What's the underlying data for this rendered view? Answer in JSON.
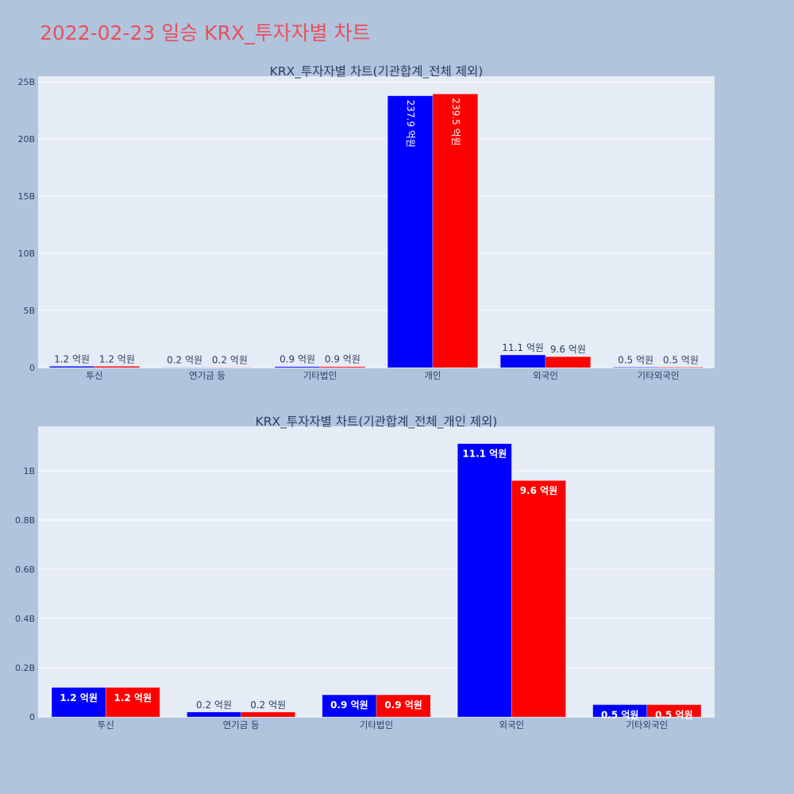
{
  "page": {
    "title": "2022-02-23 일승 KRX_투자자별 차트"
  },
  "colors": {
    "series1": "#0000ff",
    "series2": "#ff0000",
    "plot_bg": "#e5ecf6",
    "page_bg": "#b0c4de",
    "title": "#e8505b"
  },
  "chart_data": [
    {
      "type": "bar",
      "title": "KRX_투자자별 차트(기관합계_전체 제외)",
      "categories": [
        "투신",
        "연기금 등",
        "기타법인",
        "개인",
        "외국인",
        "기타외국인"
      ],
      "series": [
        {
          "values": [
            120000000,
            20000000,
            90000000,
            23790000000,
            1110000000,
            50000000
          ],
          "labels": [
            "1.2 억원",
            "0.2 억원",
            "0.9 억원",
            "237.9 억원",
            "11.1 억원",
            "0.5 억원"
          ]
        },
        {
          "values": [
            120000000,
            20000000,
            90000000,
            23950000000,
            960000000,
            50000000
          ],
          "labels": [
            "1.2 억원",
            "0.2 억원",
            "0.9 억원",
            "239.5 억원",
            "9.6 억원",
            "0.5 억원"
          ]
        }
      ],
      "yticks": [
        0,
        5000000000,
        10000000000,
        15000000000,
        20000000000,
        25000000000
      ],
      "ytick_labels": [
        "0",
        "5B",
        "10B",
        "15B",
        "20B",
        "25B"
      ],
      "ylim": [
        0,
        25500000000
      ],
      "grid": true
    },
    {
      "type": "bar",
      "title": "KRX_투자자별 차트(기관합계_전체_개인 제외)",
      "categories": [
        "투신",
        "연기금 등",
        "기타법인",
        "외국인",
        "기타외국인"
      ],
      "series": [
        {
          "values": [
            120000000,
            20000000,
            90000000,
            1110000000,
            50000000
          ],
          "labels": [
            "1.2 억원",
            "0.2 억원",
            "0.9 억원",
            "11.1 억원",
            "0.5 억원"
          ]
        },
        {
          "values": [
            120000000,
            20000000,
            90000000,
            960000000,
            50000000
          ],
          "labels": [
            "1.2 억원",
            "0.2 억원",
            "0.9 억원",
            "9.6 억원",
            "0.5 억원"
          ]
        }
      ],
      "yticks": [
        0,
        200000000,
        400000000,
        600000000,
        800000000,
        1000000000
      ],
      "ytick_labels": [
        "0",
        "0.2B",
        "0.4B",
        "0.6B",
        "0.8B",
        "1B"
      ],
      "ylim": [
        0,
        1180000000
      ],
      "grid": true
    }
  ]
}
